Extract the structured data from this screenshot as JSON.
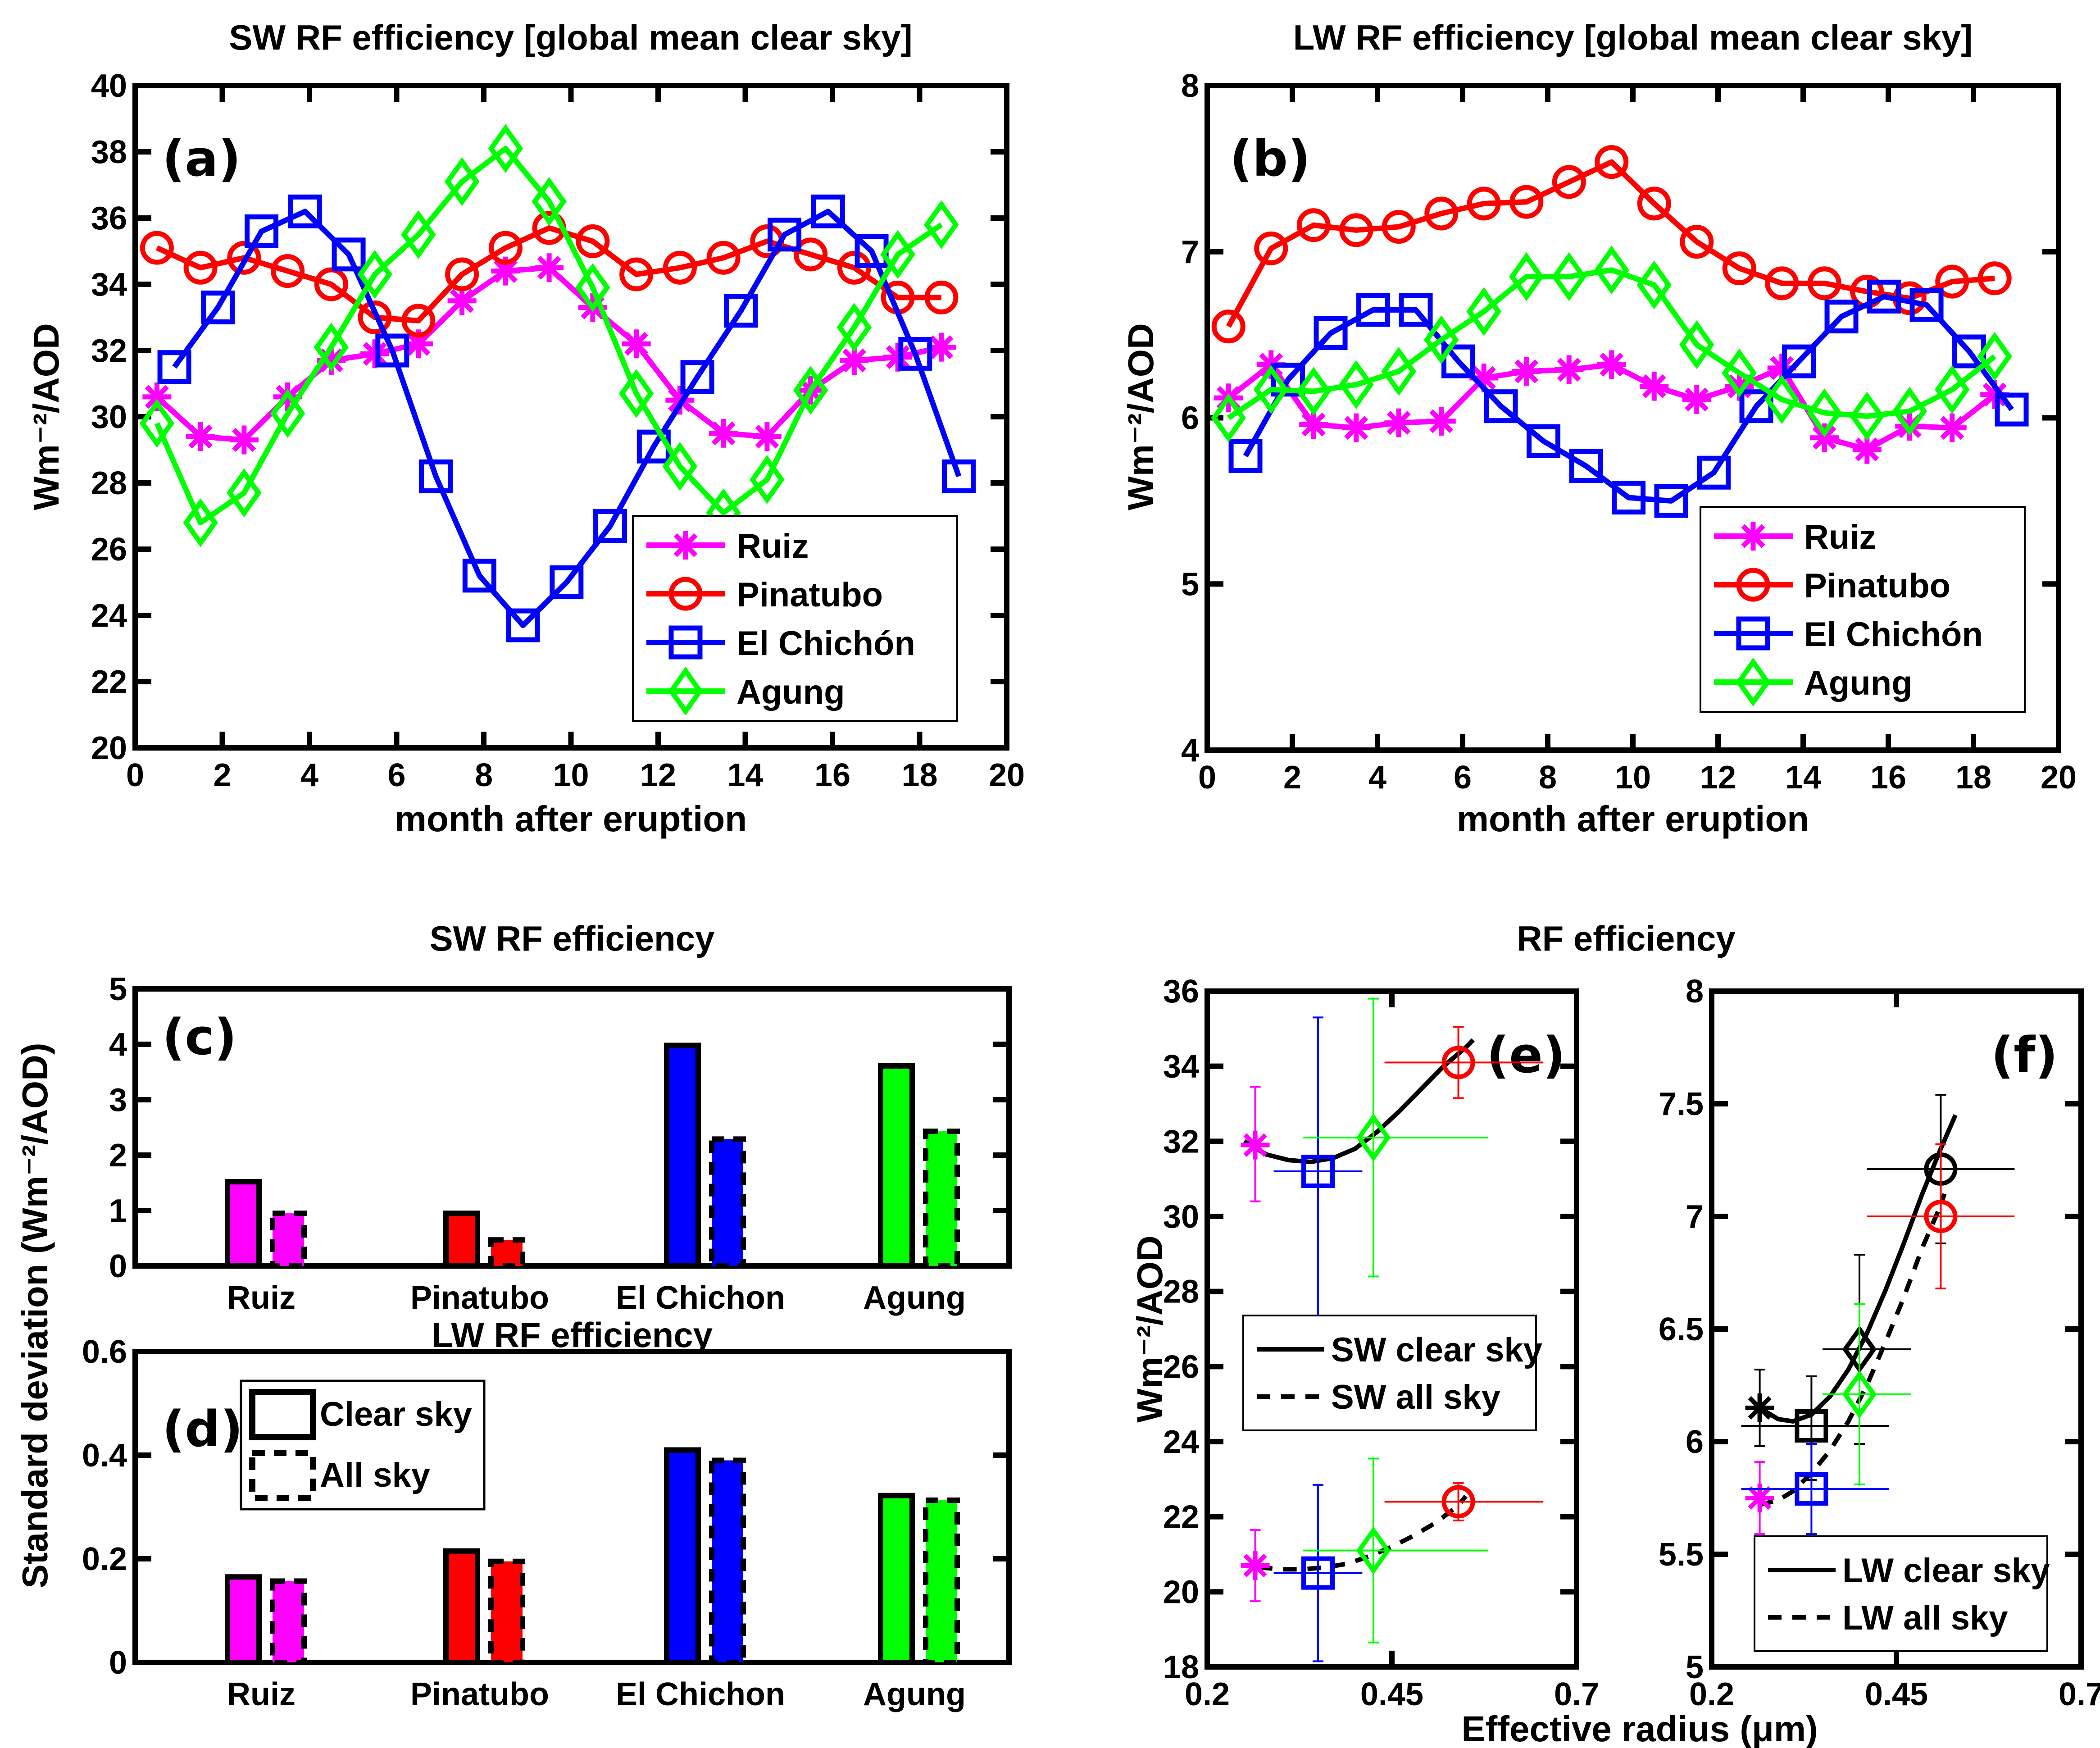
{
  "colors": {
    "Ruiz": "#ff00ff",
    "Pinatubo": "#ff0000",
    "El Chichón": "#0000ff",
    "Agung": "#00ff00",
    "black": "#000000"
  },
  "chart_data": [
    {
      "id": "a",
      "type": "line",
      "panel_label": "(a)",
      "title": "SW RF efficiency [global mean clear sky]",
      "xlabel": "month after eruption",
      "ylabel": "Wm⁻²/AOD",
      "xlim": [
        0,
        20
      ],
      "ylim": [
        20,
        40
      ],
      "xticks": [
        0,
        2,
        4,
        6,
        8,
        10,
        12,
        14,
        16,
        18,
        20
      ],
      "yticks": [
        20,
        22,
        24,
        26,
        28,
        30,
        32,
        34,
        36,
        38,
        40
      ],
      "legend": {
        "placement": "bottom-right",
        "entries": [
          "Ruiz",
          "Pinatubo",
          "El Chichón",
          "Agung"
        ]
      },
      "series": [
        {
          "name": "Ruiz",
          "marker": "asterisk",
          "x": [
            0.5,
            1.5,
            2.5,
            3.5,
            4.5,
            5.5,
            6.5,
            7.5,
            8.5,
            9.5,
            10.5,
            11.5,
            12.5,
            13.5,
            14.5,
            15.5,
            16.5,
            17.5,
            18.5
          ],
          "y": [
            30.6,
            29.4,
            29.3,
            30.6,
            31.7,
            31.9,
            32.2,
            33.5,
            34.4,
            34.5,
            33.3,
            32.2,
            30.5,
            29.5,
            29.4,
            30.8,
            31.7,
            31.8,
            32.1
          ]
        },
        {
          "name": "Pinatubo",
          "marker": "circle",
          "x": [
            0.5,
            1.5,
            2.5,
            3.5,
            4.5,
            5.5,
            6.5,
            7.5,
            8.5,
            9.5,
            10.5,
            11.5,
            12.5,
            13.5,
            14.5,
            15.5,
            16.5,
            17.5,
            18.5
          ],
          "y": [
            35.1,
            34.5,
            34.8,
            34.4,
            34.0,
            33.0,
            32.9,
            34.3,
            35.1,
            35.7,
            35.3,
            34.3,
            34.5,
            34.8,
            35.3,
            34.9,
            34.5,
            33.6,
            33.6
          ]
        },
        {
          "name": "El Chichón",
          "marker": "square",
          "x": [
            0.9,
            1.9,
            2.9,
            3.9,
            4.9,
            5.9,
            6.9,
            7.9,
            8.9,
            9.9,
            10.9,
            11.9,
            12.9,
            13.9,
            14.9,
            15.9,
            16.9,
            17.9,
            18.9
          ],
          "y": [
            31.5,
            33.3,
            35.6,
            36.2,
            34.9,
            32.0,
            28.2,
            25.2,
            23.7,
            25.0,
            26.7,
            29.1,
            31.2,
            33.2,
            35.5,
            36.2,
            35.0,
            31.9,
            28.2
          ]
        },
        {
          "name": "Agung",
          "marker": "diamond",
          "x": [
            0.5,
            1.5,
            2.5,
            3.5,
            4.5,
            5.5,
            6.5,
            7.5,
            8.5,
            9.5,
            10.5,
            11.5,
            12.5,
            13.5,
            14.5,
            15.5,
            16.5,
            17.5,
            18.5
          ],
          "y": [
            29.8,
            26.8,
            27.7,
            30.1,
            32.1,
            34.3,
            35.5,
            37.1,
            38.1,
            36.5,
            33.9,
            30.7,
            28.5,
            27.1,
            28.1,
            30.8,
            32.7,
            34.9,
            35.8
          ]
        }
      ]
    },
    {
      "id": "b",
      "type": "line",
      "panel_label": "(b)",
      "title": "LW RF efficiency [global mean clear sky]",
      "xlabel": "month after eruption",
      "ylabel": "Wm⁻²/AOD",
      "xlim": [
        0,
        20
      ],
      "ylim": [
        4,
        8
      ],
      "xticks": [
        0,
        2,
        4,
        6,
        8,
        10,
        12,
        14,
        16,
        18,
        20
      ],
      "yticks": [
        4,
        5,
        6,
        7,
        8
      ],
      "legend": {
        "placement": "bottom-right",
        "entries": [
          "Ruiz",
          "Pinatubo",
          "El Chichón",
          "Agung"
        ]
      },
      "series": [
        {
          "name": "Ruiz",
          "marker": "asterisk",
          "x": [
            0.5,
            1.5,
            2.5,
            3.5,
            4.5,
            5.5,
            6.5,
            7.5,
            8.5,
            9.5,
            10.5,
            11.5,
            12.5,
            13.5,
            14.5,
            15.5,
            16.5,
            17.5,
            18.5
          ],
          "y": [
            6.12,
            6.32,
            5.96,
            5.94,
            5.97,
            5.98,
            6.24,
            6.28,
            6.29,
            6.32,
            6.19,
            6.11,
            6.19,
            6.3,
            5.88,
            5.81,
            5.95,
            5.94,
            6.14
          ]
        },
        {
          "name": "Pinatubo",
          "marker": "circle",
          "x": [
            0.5,
            1.5,
            2.5,
            3.5,
            4.5,
            5.5,
            6.5,
            7.5,
            8.5,
            9.5,
            10.5,
            11.5,
            12.5,
            13.5,
            14.5,
            15.5,
            16.5,
            17.5,
            18.5
          ],
          "y": [
            6.55,
            7.02,
            7.16,
            7.13,
            7.15,
            7.23,
            7.29,
            7.3,
            7.42,
            7.54,
            7.29,
            7.06,
            6.9,
            6.81,
            6.81,
            6.76,
            6.72,
            6.82,
            6.84
          ]
        },
        {
          "name": "El Chichón",
          "marker": "square",
          "x": [
            0.9,
            1.9,
            2.9,
            3.9,
            4.9,
            5.9,
            6.9,
            7.9,
            8.9,
            9.9,
            10.9,
            11.9,
            12.9,
            13.9,
            14.9,
            15.9,
            16.9,
            17.9,
            18.9
          ],
          "y": [
            5.77,
            6.23,
            6.51,
            6.65,
            6.65,
            6.34,
            6.07,
            5.86,
            5.71,
            5.52,
            5.5,
            5.67,
            6.07,
            6.34,
            6.61,
            6.73,
            6.68,
            6.4,
            6.05
          ]
        },
        {
          "name": "Agung",
          "marker": "diamond",
          "x": [
            0.5,
            1.5,
            2.5,
            3.5,
            4.5,
            5.5,
            6.5,
            7.5,
            8.5,
            9.5,
            10.5,
            11.5,
            12.5,
            13.5,
            14.5,
            15.5,
            16.5,
            17.5,
            18.5
          ],
          "y": [
            6.0,
            6.17,
            6.16,
            6.2,
            6.28,
            6.47,
            6.64,
            6.85,
            6.85,
            6.89,
            6.8,
            6.44,
            6.27,
            6.11,
            6.03,
            6.01,
            6.04,
            6.17,
            6.37
          ]
        }
      ]
    },
    {
      "id": "c",
      "type": "bar",
      "panel_label": "(c)",
      "title": "SW RF efficiency",
      "xlabel": "",
      "ylabel": "Standard deviation (Wm⁻²/AOD)",
      "ylim": [
        0,
        5
      ],
      "yticks": [
        0,
        1,
        2,
        3,
        4,
        5
      ],
      "categories": [
        "Ruiz",
        "Pinatubo",
        "El Chichon",
        "Agung"
      ],
      "series": [
        {
          "name": "Clear sky",
          "line_style": "solid",
          "values": [
            1.52,
            0.95,
            3.98,
            3.61
          ]
        },
        {
          "name": "All sky",
          "line_style": "dashed",
          "values": [
            0.95,
            0.47,
            2.29,
            2.43
          ]
        }
      ]
    },
    {
      "id": "d",
      "type": "bar",
      "panel_label": "(d)",
      "title": "LW RF efficiency",
      "xlabel": "",
      "ylabel": "Standard deviation (Wm⁻²/AOD)",
      "ylim": [
        0,
        0.6
      ],
      "yticks": [
        0,
        0.2,
        0.4,
        0.6
      ],
      "categories": [
        "Ruiz",
        "Pinatubo",
        "El Chichon",
        "Agung"
      ],
      "legend": {
        "placement": "top-left",
        "entries": [
          "Clear sky",
          "All sky"
        ]
      },
      "series": [
        {
          "name": "Clear sky",
          "line_style": "solid",
          "values": [
            0.165,
            0.215,
            0.41,
            0.322
          ]
        },
        {
          "name": "All sky",
          "line_style": "dashed",
          "values": [
            0.157,
            0.195,
            0.39,
            0.313
          ]
        }
      ]
    },
    {
      "id": "e",
      "type": "scatter",
      "panel_label": "(e)",
      "group_title": "RF efficiency",
      "xlabel": "Effective radius (μm)",
      "ylabel": "Wm⁻²/AOD",
      "xlim": [
        0.2,
        0.7
      ],
      "ylim": [
        18,
        36
      ],
      "xticks": [
        0.2,
        0.45,
        0.7
      ],
      "yticks": [
        18,
        20,
        22,
        24,
        26,
        28,
        30,
        32,
        34,
        36
      ],
      "legend": {
        "placement": "center-left",
        "entries": [
          "SW clear sky",
          "SW all sky"
        ]
      },
      "points": [
        {
          "set": "clear",
          "name": "Ruiz",
          "marker": "asterisk",
          "x": 0.265,
          "y": 31.9,
          "yerr": [
            30.4,
            33.45
          ],
          "xerr": null
        },
        {
          "set": "clear",
          "name": "El Chichón",
          "marker": "square",
          "x": 0.35,
          "y": 31.2,
          "yerr": [
            27.1,
            35.3
          ],
          "xerr": [
            0.29,
            0.41
          ]
        },
        {
          "set": "clear",
          "name": "Agung",
          "marker": "diamond",
          "x": 0.425,
          "y": 32.1,
          "yerr": [
            28.4,
            35.8
          ],
          "xerr": [
            0.33,
            0.58
          ]
        },
        {
          "set": "clear",
          "name": "Pinatubo",
          "marker": "circle",
          "x": 0.54,
          "y": 34.1,
          "yerr": [
            33.15,
            35.05
          ],
          "xerr": [
            0.44,
            0.655
          ]
        },
        {
          "set": "all",
          "name": "Ruiz",
          "marker": "asterisk",
          "x": 0.265,
          "y": 20.7,
          "yerr": [
            19.75,
            21.65
          ],
          "xerr": null
        },
        {
          "set": "all",
          "name": "El Chichón",
          "marker": "square",
          "x": 0.35,
          "y": 20.5,
          "yerr": [
            18.15,
            22.85
          ],
          "xerr": [
            0.29,
            0.41
          ]
        },
        {
          "set": "all",
          "name": "Agung",
          "marker": "diamond",
          "x": 0.425,
          "y": 21.1,
          "yerr": [
            18.65,
            23.55
          ],
          "xerr": [
            0.33,
            0.58
          ]
        },
        {
          "set": "all",
          "name": "Pinatubo",
          "marker": "circle",
          "x": 0.54,
          "y": 22.4,
          "yerr": [
            21.9,
            22.9
          ],
          "xerr": [
            0.44,
            0.655
          ]
        }
      ],
      "fits": [
        {
          "name": "SW clear sky",
          "style": "solid",
          "x": [
            0.25,
            0.28,
            0.31,
            0.34,
            0.37,
            0.4,
            0.43,
            0.46,
            0.49,
            0.52,
            0.55,
            0.56
          ],
          "y": [
            32.0,
            31.65,
            31.5,
            31.45,
            31.55,
            31.8,
            32.25,
            32.8,
            33.4,
            34.0,
            34.5,
            34.7
          ]
        },
        {
          "name": "SW all sky",
          "style": "dashed",
          "x": [
            0.27,
            0.3,
            0.33,
            0.36,
            0.39,
            0.42,
            0.45,
            0.48,
            0.51,
            0.54,
            0.55
          ],
          "y": [
            20.65,
            20.6,
            20.6,
            20.65,
            20.75,
            20.95,
            21.2,
            21.5,
            21.85,
            22.3,
            22.55
          ]
        }
      ]
    },
    {
      "id": "f",
      "type": "scatter",
      "panel_label": "(f)",
      "xlabel": "Effective radius (μm)",
      "ylabel": "",
      "xlim": [
        0.2,
        0.7
      ],
      "ylim": [
        5,
        8
      ],
      "xticks": [
        0.2,
        0.45,
        0.7
      ],
      "yticks": [
        5,
        5.5,
        6,
        6.5,
        7,
        7.5,
        8
      ],
      "legend": {
        "placement": "bottom-right",
        "entries": [
          "LW clear sky",
          "LW all sky"
        ]
      },
      "points": [
        {
          "set": "clear",
          "name": "Ruiz",
          "marker": "asterisk",
          "color_key": "black",
          "x": 0.265,
          "y": 6.15,
          "yerr": [
            5.98,
            6.32
          ],
          "xerr": null
        },
        {
          "set": "clear",
          "name": "El Chichón",
          "marker": "square",
          "color_key": "black",
          "x": 0.335,
          "y": 6.07,
          "yerr": [
            5.83,
            6.29
          ],
          "xerr": [
            0.24,
            0.44
          ]
        },
        {
          "set": "clear",
          "name": "Agung",
          "marker": "diamond",
          "color_key": "black",
          "x": 0.4,
          "y": 6.41,
          "yerr": [
            5.99,
            6.83
          ],
          "xerr": [
            0.35,
            0.47
          ]
        },
        {
          "set": "clear",
          "name": "Pinatubo",
          "marker": "circle",
          "color_key": "black",
          "x": 0.51,
          "y": 7.21,
          "yerr": [
            6.88,
            7.54
          ],
          "xerr": [
            0.41,
            0.61
          ]
        },
        {
          "set": "all",
          "name": "Ruiz",
          "marker": "asterisk",
          "x": 0.265,
          "y": 5.75,
          "yerr": [
            5.59,
            5.91
          ],
          "xerr": null
        },
        {
          "set": "all",
          "name": "El Chichón",
          "marker": "square",
          "x": 0.335,
          "y": 5.79,
          "yerr": [
            5.59,
            5.99
          ],
          "xerr": [
            0.24,
            0.44
          ]
        },
        {
          "set": "all",
          "name": "Agung",
          "marker": "diamond",
          "x": 0.4,
          "y": 6.21,
          "yerr": [
            5.81,
            6.61
          ],
          "xerr": [
            0.35,
            0.47
          ]
        },
        {
          "set": "all",
          "name": "Pinatubo",
          "marker": "circle",
          "x": 0.51,
          "y": 7.0,
          "yerr": [
            6.68,
            7.32
          ],
          "xerr": [
            0.41,
            0.61
          ]
        }
      ],
      "fits": [
        {
          "name": "LW clear sky",
          "style": "solid",
          "x": [
            0.265,
            0.29,
            0.31,
            0.335,
            0.36,
            0.385,
            0.41,
            0.435,
            0.46,
            0.485,
            0.51,
            0.53
          ],
          "y": [
            6.15,
            6.1,
            6.09,
            6.12,
            6.2,
            6.32,
            6.48,
            6.67,
            6.88,
            7.1,
            7.3,
            7.45
          ]
        },
        {
          "name": "LW all sky",
          "style": "dashed",
          "x": [
            0.265,
            0.29,
            0.31,
            0.335,
            0.36,
            0.385,
            0.41,
            0.435,
            0.46,
            0.485,
            0.51,
            0.515
          ],
          "y": [
            5.72,
            5.74,
            5.78,
            5.86,
            5.96,
            6.09,
            6.25,
            6.44,
            6.64,
            6.86,
            7.05,
            7.1
          ]
        }
      ]
    }
  ]
}
